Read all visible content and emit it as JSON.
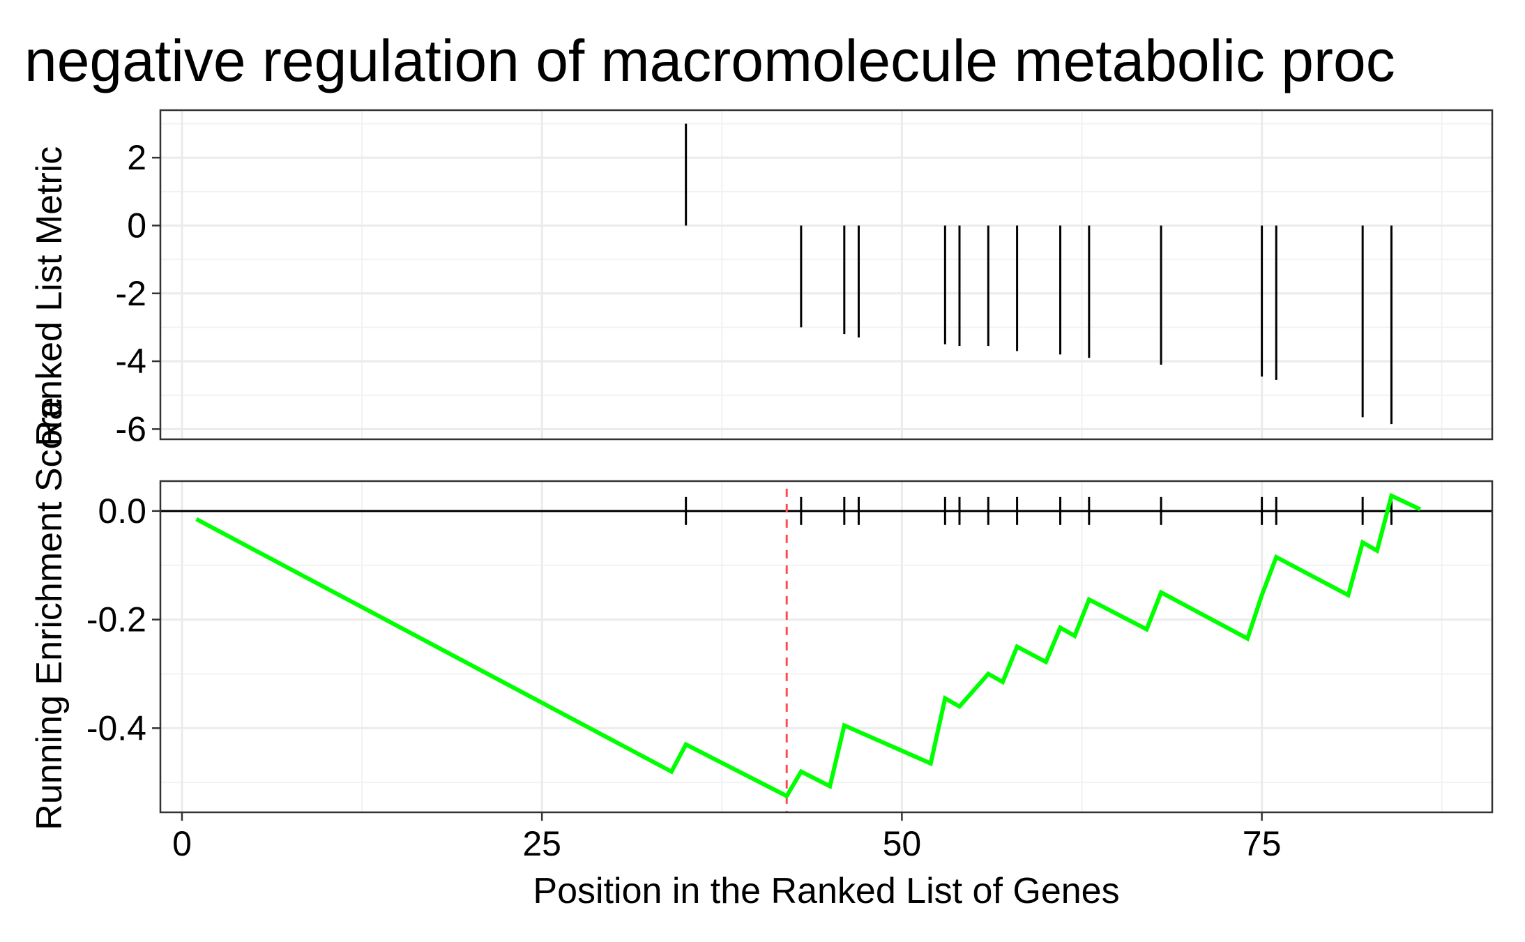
{
  "chart_data": [
    {
      "type": "bar",
      "title": "negative regulation of macromolecule metabolic proc",
      "ylabel": "Ranked List Metric",
      "xlim": [
        -1.5,
        91
      ],
      "ylim": [
        -6.3,
        3.4
      ],
      "yticks": [
        "2",
        "0",
        "-2",
        "-4",
        "-6"
      ],
      "ytick_values": [
        2,
        0,
        -2,
        -4,
        -6
      ],
      "grid": true,
      "x": [
        35,
        43,
        46,
        47,
        53,
        54,
        56,
        58,
        61,
        63,
        68,
        75,
        76,
        82,
        84
      ],
      "values": [
        3.0,
        -3.0,
        -3.2,
        -3.3,
        -3.5,
        -3.55,
        -3.55,
        -3.7,
        -3.8,
        -3.9,
        -4.1,
        -4.45,
        -4.55,
        -5.65,
        -5.85
      ],
      "colors": {
        "bar": "#000000"
      }
    },
    {
      "type": "line",
      "xlabel": "Position in the Ranked List of Genes",
      "ylabel": "Running Enrichment Score",
      "xlim": [
        -1.5,
        91
      ],
      "ylim": [
        -0.555,
        0.055
      ],
      "xticks": [
        "0",
        "25",
        "50",
        "75"
      ],
      "xtick_values": [
        0,
        25,
        50,
        75
      ],
      "yticks": [
        "0.0",
        "-0.2",
        "-0.4"
      ],
      "ytick_values": [
        0,
        -0.2,
        -0.4
      ],
      "grid": true,
      "series": [
        {
          "x": [
            1,
            34,
            35,
            42,
            43,
            45,
            46,
            52,
            53,
            54,
            56,
            57,
            58,
            60,
            61,
            62,
            63,
            67,
            68,
            74,
            75,
            76,
            81,
            82,
            83,
            84,
            86
          ],
          "values": [
            -0.015,
            -0.48,
            -0.43,
            -0.525,
            -0.48,
            -0.507,
            -0.395,
            -0.465,
            -0.345,
            -0.36,
            -0.3,
            -0.315,
            -0.25,
            -0.278,
            -0.215,
            -0.23,
            -0.163,
            -0.218,
            -0.15,
            -0.235,
            -0.155,
            -0.085,
            -0.155,
            -0.058,
            -0.073,
            0.028,
            0.003
          ],
          "color": "#00ff00"
        }
      ],
      "hits_x": [
        35,
        43,
        46,
        47,
        53,
        54,
        56,
        58,
        61,
        63,
        68,
        75,
        76,
        82,
        84
      ],
      "max_deviation_x": 42,
      "colors": {
        "zero_line": "#000000",
        "max_deviation_line": "#ff4d4d"
      }
    }
  ]
}
